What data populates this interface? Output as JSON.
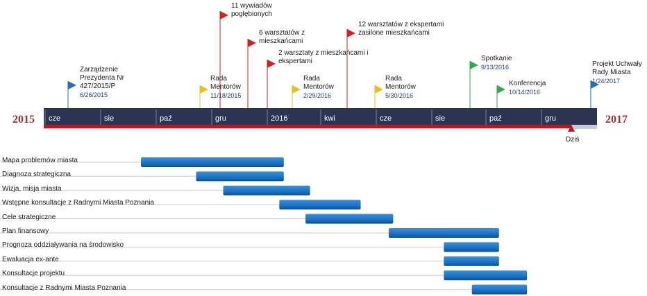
{
  "years": {
    "start": "2015",
    "end": "2017"
  },
  "months": [
    "cze",
    "sie",
    "paź",
    "gru",
    "2016",
    "kwi",
    "cze",
    "sie",
    "paź",
    "gru"
  ],
  "today_label": "Dziś",
  "colors": {
    "axis_dark": "#2b3553",
    "axis_light": "#c5cad6",
    "progress": "#c0161d",
    "bar": "#1a72c4",
    "bar_dark": "#0f4e8f",
    "flag_blue": "#1f6fc0",
    "flag_yellow": "#e8c21b",
    "flag_red": "#d81e1e",
    "flag_green": "#32a852"
  },
  "milestones": [
    {
      "title": "Zarządzenie Prezydenta Nr 427/2015/P",
      "lines": [
        "Zarządzenie",
        "Prezydenta Nr",
        "427/2015/P"
      ],
      "date": "6/26/2015",
      "flag": "blue"
    },
    {
      "title": "Rada Mentorów",
      "lines": [
        "Rada",
        "Mentorów"
      ],
      "date": "11/18/2015",
      "flag": "yellow"
    },
    {
      "title": "11 wywiadów pogłębionych",
      "lines": [
        "11 wywiadów",
        "pogłębionych"
      ],
      "date": "",
      "flag": "red"
    },
    {
      "title": "6 warsztatów z mieszkańcami",
      "lines": [
        "6 warsztatów z",
        "mieszkańcami"
      ],
      "date": "",
      "flag": "red"
    },
    {
      "title": "2 warsztaty z mieszkańcami i ekspertami",
      "lines": [
        "2 warsztaty z mieszkańcami i",
        "ekspertami"
      ],
      "date": "",
      "flag": "red"
    },
    {
      "title": "Rada Mentorów",
      "lines": [
        "Rada",
        "Mentorów"
      ],
      "date": "2/29/2016",
      "flag": "yellow"
    },
    {
      "title": "12 warsztatów z ekspertami zasilone mieszkańcami",
      "lines": [
        "12 warsztatów z ekspertami",
        "zasilone mieszkańcami"
      ],
      "date": "",
      "flag": "red"
    },
    {
      "title": "Rada Mentorów",
      "lines": [
        "Rada",
        "Mentorów"
      ],
      "date": "5/30/2016",
      "flag": "yellow"
    },
    {
      "title": "Spotkanie",
      "lines": [
        "Spotkanie"
      ],
      "date": "9/13/2016",
      "flag": "green"
    },
    {
      "title": "Konferencja",
      "lines": [
        "Konferencja"
      ],
      "date": "10/14/2016",
      "flag": "green"
    },
    {
      "title": "Projekt Uchwały Rady Miasta",
      "lines": [
        "Projekt Uchwały",
        "Rady Miasta"
      ],
      "date": "1/24/2017",
      "flag": "blue"
    }
  ],
  "tasks": [
    {
      "name": "Mapa problemów miasta",
      "start": "2015-09-15",
      "end": "2016-02-20"
    },
    {
      "name": "Diagnoza strategiczna",
      "start": "2015-11-15",
      "end": "2016-02-20"
    },
    {
      "name": "Wizja, misja miasta",
      "start": "2015-12-15",
      "end": "2016-03-20"
    },
    {
      "name": "Wstępne konsultacje z Radnymi Miasta Poznania",
      "start": "2016-02-15",
      "end": "2016-05-15"
    },
    {
      "name": "Cele strategiczne",
      "start": "2016-03-15",
      "end": "2016-06-20"
    },
    {
      "name": "Plan finansowy",
      "start": "2016-06-15",
      "end": "2016-10-15"
    },
    {
      "name": "Prognoza oddziaływania na środowisko",
      "start": "2016-08-15",
      "end": "2016-10-15"
    },
    {
      "name": "Ewaluacja ex-ante",
      "start": "2016-08-15",
      "end": "2016-10-15"
    },
    {
      "name": "Konsultacje projektu",
      "start": "2016-08-15",
      "end": "2016-11-15"
    },
    {
      "name": "Konsultacje z Radnymi Miasta Poznania",
      "start": "2016-09-15",
      "end": "2016-11-15"
    }
  ]
}
